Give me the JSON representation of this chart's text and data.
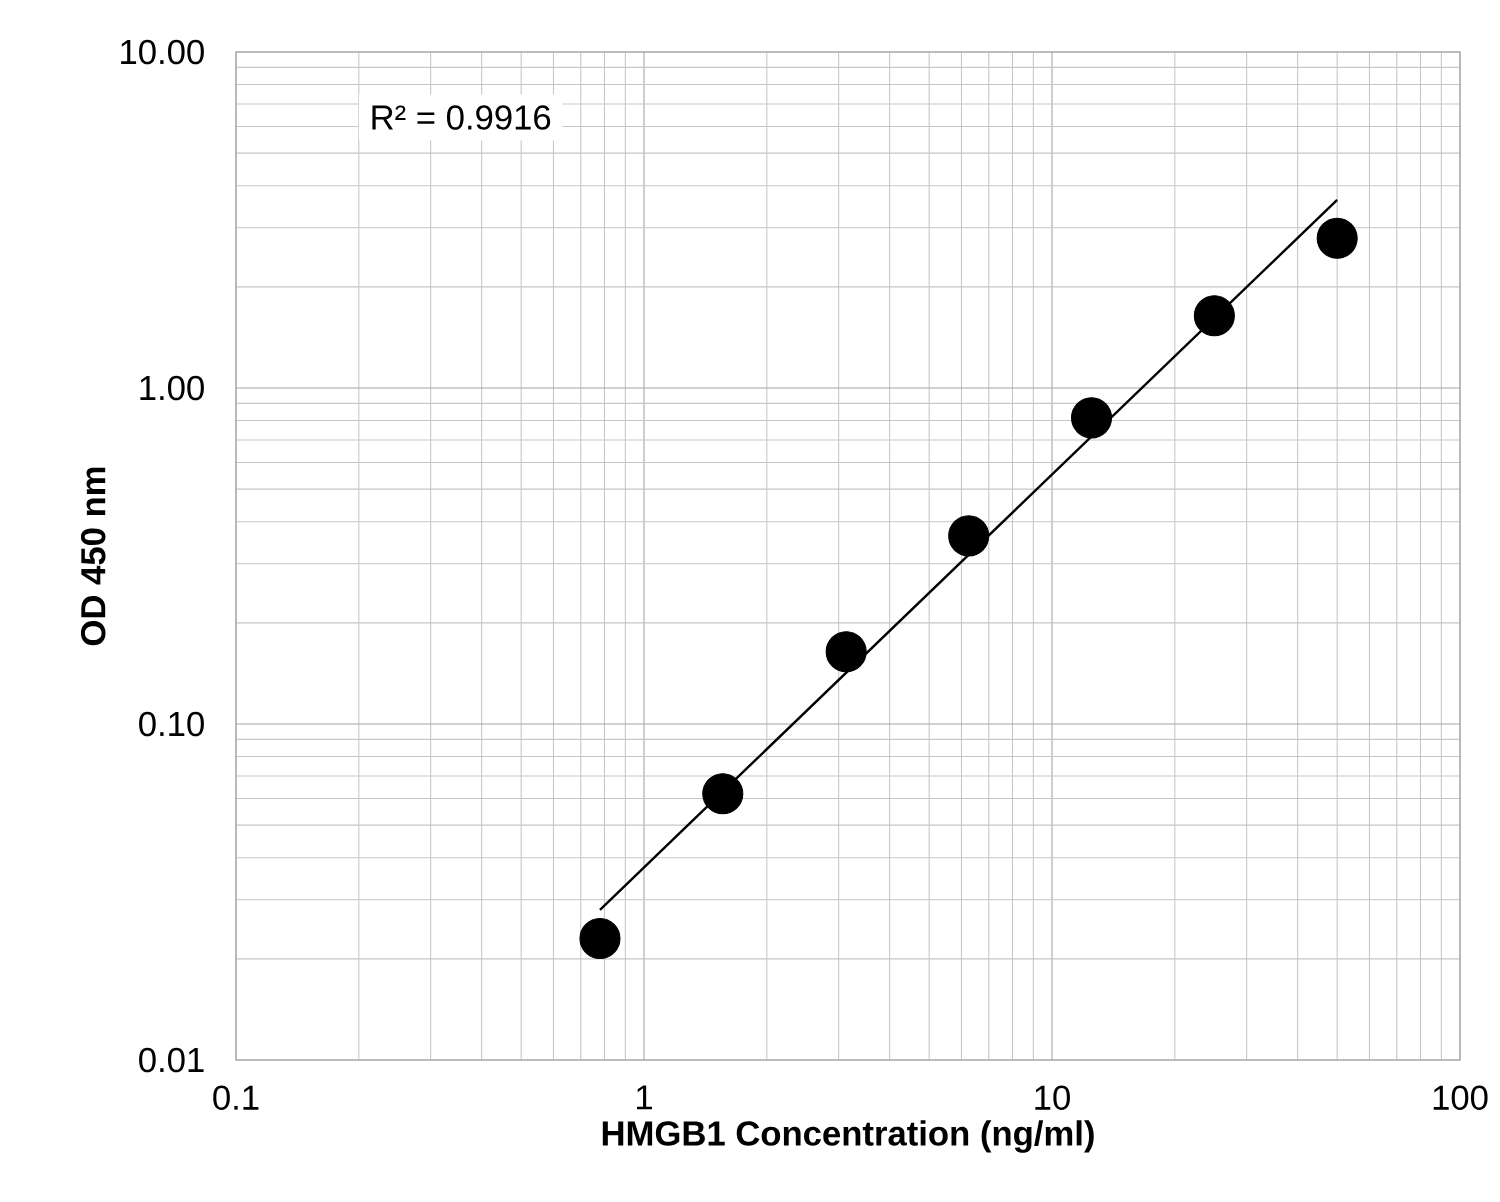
{
  "chart_data": {
    "type": "scatter",
    "xlabel": "HMGB1 Concentration (ng/ml)",
    "ylabel": "OD 450 nm",
    "log": "xy",
    "xlim": [
      0.1,
      100
    ],
    "ylim": [
      0.01,
      10
    ],
    "xticks": [
      0.1,
      1,
      10,
      100
    ],
    "yticks": [
      {
        "value": 0.01,
        "label": "0.01"
      },
      {
        "value": 0.1,
        "label": "0.10"
      },
      {
        "value": 1,
        "label": "1.00"
      },
      {
        "value": 10,
        "label": "10.00"
      }
    ],
    "grid": true,
    "series": [
      {
        "color": "#000000",
        "marker": "circle",
        "x": [
          0.78,
          1.56,
          3.13,
          6.25,
          12.5,
          25,
          50
        ],
        "values": [
          0.023,
          0.062,
          0.164,
          0.363,
          0.815,
          1.64,
          2.79
        ]
      },
      {
        "type": "line",
        "color": "#000000",
        "marker": "none",
        "x": [
          0.78,
          50
        ],
        "values": [
          0.028,
          3.63
        ]
      }
    ],
    "annotations": [
      "R² = 0.9916"
    ]
  }
}
